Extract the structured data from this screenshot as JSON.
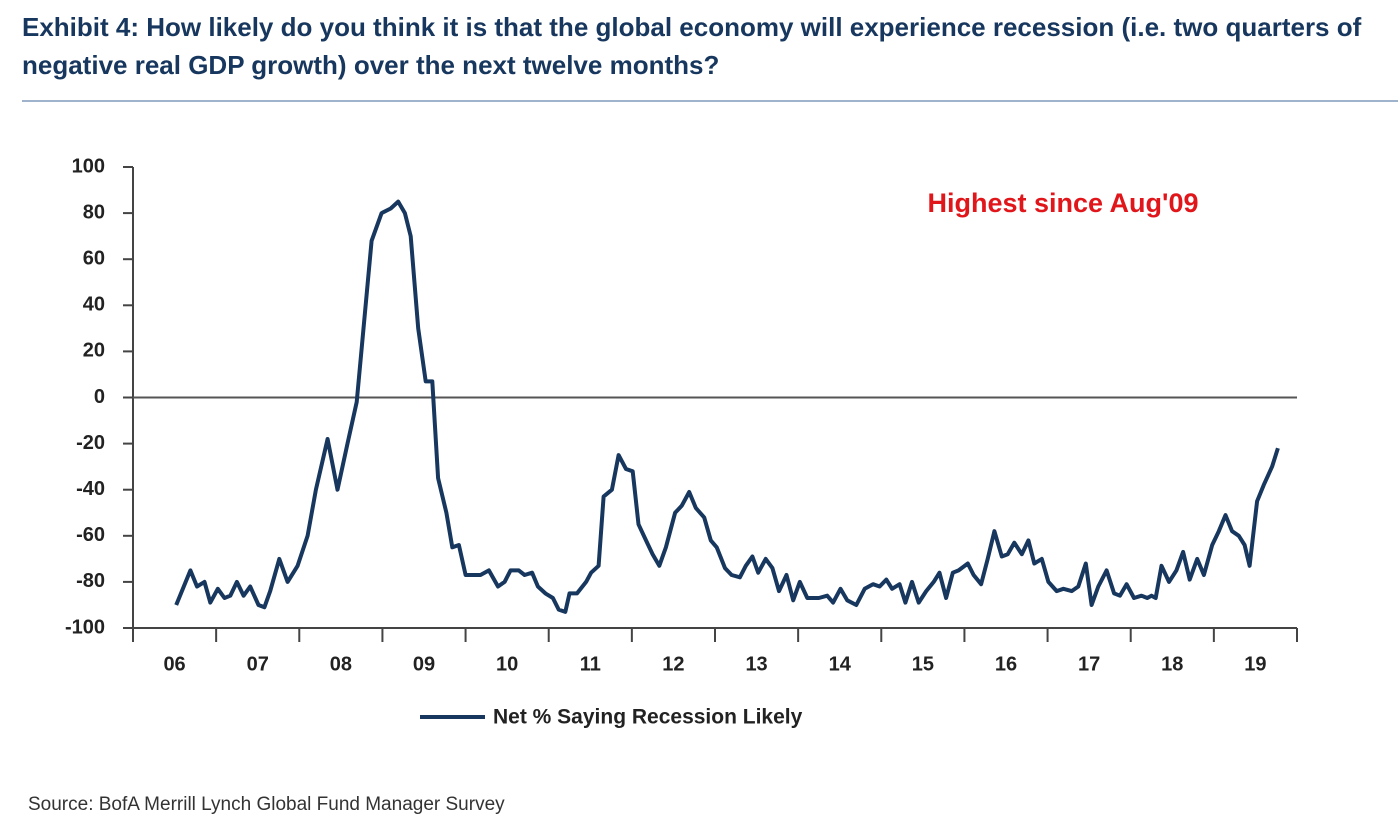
{
  "chart_data": {
    "type": "line",
    "title": "Exhibit 4: How likely do you think it is that the global economy will experience recession (i.e. two quarters of negative real GDP growth) over the next twelve months?",
    "annotation": "Highest since Aug'09",
    "source": "Source: BofA Merrill Lynch Global Fund Manager Survey",
    "x": [
      6.52,
      6.69,
      6.77,
      6.86,
      6.93,
      7.02,
      7.1,
      7.17,
      7.25,
      7.33,
      7.41,
      7.51,
      7.58,
      7.65,
      7.76,
      7.86,
      7.98,
      8.1,
      8.2,
      8.34,
      8.46,
      8.58,
      8.69,
      8.87,
      8.99,
      9.1,
      9.19,
      9.27,
      9.34,
      9.43,
      9.52,
      9.6,
      9.67,
      9.77,
      9.84,
      9.92,
      10.0,
      10.18,
      10.28,
      10.39,
      10.47,
      10.54,
      10.64,
      10.71,
      10.8,
      10.87,
      10.96,
      11.05,
      11.12,
      11.2,
      11.25,
      11.34,
      11.45,
      11.51,
      11.6,
      11.66,
      11.76,
      11.84,
      11.93,
      12.01,
      12.08,
      12.17,
      12.25,
      12.33,
      12.41,
      12.52,
      12.6,
      12.69,
      12.77,
      12.87,
      12.95,
      13.02,
      13.12,
      13.2,
      13.3,
      13.37,
      13.45,
      13.52,
      13.61,
      13.69,
      13.77,
      13.86,
      13.94,
      14.02,
      14.11,
      14.25,
      14.35,
      14.42,
      14.51,
      14.59,
      14.7,
      14.8,
      14.9,
      14.98,
      15.06,
      15.13,
      15.22,
      15.29,
      15.37,
      15.45,
      15.54,
      15.63,
      15.7,
      15.78,
      15.86,
      15.93,
      16.04,
      16.11,
      16.2,
      16.28,
      16.36,
      16.45,
      16.52,
      16.6,
      16.69,
      16.77,
      16.84,
      16.93,
      17.01,
      17.11,
      17.19,
      17.29,
      17.37,
      17.46,
      17.53,
      17.61,
      17.71,
      17.8,
      17.87,
      17.95,
      18.04,
      18.13,
      18.2,
      18.25,
      18.3,
      18.37,
      18.46,
      18.55,
      18.63,
      18.71,
      18.8,
      18.88,
      18.98,
      19.06,
      19.14,
      19.22,
      19.3,
      19.37,
      19.43,
      19.52,
      19.6,
      19.7,
      19.77
    ],
    "series": [
      {
        "name": "Net % Saying Recession Likely",
        "color": "#17375e",
        "values": [
          -90,
          -75,
          -82,
          -80,
          -89,
          -83,
          -87,
          -86,
          -80,
          -86,
          -82,
          -90,
          -91,
          -84,
          -70,
          -80,
          -73,
          -60,
          -40,
          -18,
          -40,
          -20,
          -2,
          68,
          80,
          82,
          85,
          80,
          70,
          30,
          7,
          7,
          -35,
          -50,
          -65,
          -64,
          -77,
          -77,
          -75,
          -82,
          -80,
          -75,
          -75,
          -77,
          -76,
          -82,
          -85,
          -87,
          -92,
          -93,
          -85,
          -85,
          -80,
          -76,
          -73,
          -43,
          -40,
          -25,
          -31,
          -32,
          -55,
          -62,
          -68,
          -73,
          -65,
          -50,
          -47,
          -41,
          -48,
          -52,
          -62,
          -65,
          -74,
          -77,
          -78,
          -73,
          -69,
          -76,
          -70,
          -74,
          -84,
          -77,
          -88,
          -80,
          -87,
          -87,
          -86,
          -89,
          -83,
          -88,
          -90,
          -83,
          -81,
          -82,
          -79,
          -83,
          -81,
          -89,
          -80,
          -89,
          -84,
          -80,
          -76,
          -87,
          -76,
          -75,
          -72,
          -77,
          -81,
          -70,
          -58,
          -69,
          -68,
          -63,
          -68,
          -62,
          -72,
          -70,
          -80,
          -84,
          -83,
          -84,
          -82,
          -72,
          -90,
          -82,
          -75,
          -85,
          -86,
          -81,
          -87,
          -86,
          -87,
          -86,
          -87,
          -73,
          -80,
          -75,
          -67,
          -79,
          -70,
          -77,
          -64,
          -58,
          -51,
          -58,
          -60,
          -64,
          -73,
          -45,
          -38,
          -30,
          -22
        ]
      }
    ],
    "xlim": [
      6,
      20
    ],
    "xticks": [
      {
        "value": 6.5,
        "label": "06"
      },
      {
        "value": 7.5,
        "label": "07"
      },
      {
        "value": 8.5,
        "label": "08"
      },
      {
        "value": 9.5,
        "label": "09"
      },
      {
        "value": 10.5,
        "label": "10"
      },
      {
        "value": 11.5,
        "label": "11"
      },
      {
        "value": 12.5,
        "label": "12"
      },
      {
        "value": 13.5,
        "label": "13"
      },
      {
        "value": 14.5,
        "label": "14"
      },
      {
        "value": 15.5,
        "label": "15"
      },
      {
        "value": 16.5,
        "label": "16"
      },
      {
        "value": 17.5,
        "label": "17"
      },
      {
        "value": 18.5,
        "label": "18"
      },
      {
        "value": 19.5,
        "label": "19"
      }
    ],
    "ylim": [
      -100,
      100
    ],
    "yticks": [
      100,
      80,
      60,
      40,
      20,
      0,
      -20,
      -40,
      -60,
      -80,
      -100
    ],
    "grid": false
  }
}
